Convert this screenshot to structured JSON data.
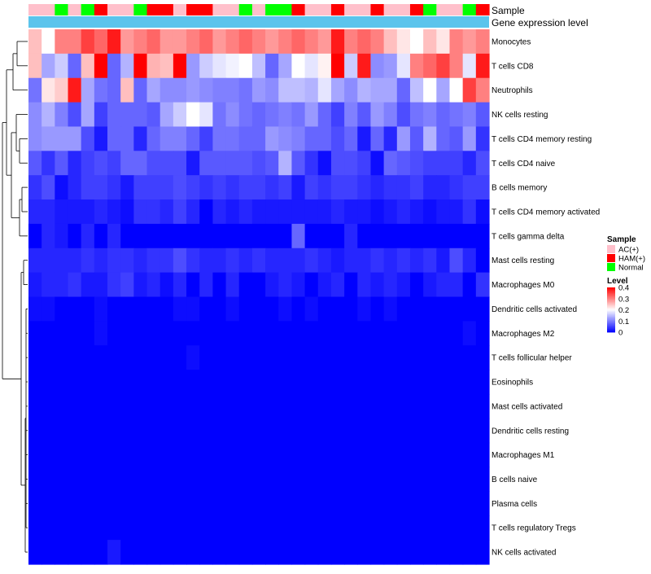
{
  "chart_data": {
    "type": "heatmap",
    "title": "",
    "annotations": [
      {
        "name": "Sample",
        "values": [
          "AC(+)",
          "AC(+)",
          "Normal",
          "AC(+)",
          "Normal",
          "HAM(+)",
          "AC(+)",
          "AC(+)",
          "Normal",
          "HAM(+)",
          "HAM(+)",
          "AC(+)",
          "HAM(+)",
          "HAM(+)",
          "AC(+)",
          "AC(+)",
          "Normal",
          "AC(+)",
          "Normal",
          "Normal",
          "HAM(+)",
          "AC(+)",
          "AC(+)",
          "HAM(+)",
          "AC(+)",
          "AC(+)",
          "HAM(+)",
          "AC(+)",
          "AC(+)",
          "HAM(+)",
          "Normal",
          "AC(+)",
          "AC(+)",
          "Normal",
          "HAM(+)"
        ]
      },
      {
        "name": "Gene expression level",
        "color": "#5bc4ec"
      }
    ],
    "rows": [
      "Monocytes",
      "T cells CD8",
      "Neutrophils",
      "NK cells resting",
      "T cells CD4 memory resting",
      "T cells CD4 naive",
      "B cells memory",
      "T cells CD4 memory activated",
      "T cells gamma delta",
      "Mast cells resting",
      "Macrophages M0",
      "Dendritic cells activated",
      "Macrophages M2",
      "T cells follicular helper",
      "Eosinophils",
      "Mast cells activated",
      "Dendritic cells resting",
      "Macrophages M1",
      "B cells naive",
      "Plasma cells",
      "T cells regulatory  Tregs",
      "NK cells activated"
    ],
    "values": [
      [
        0.25,
        0.2,
        0.3,
        0.3,
        0.35,
        0.32,
        0.38,
        0.28,
        0.3,
        0.32,
        0.28,
        0.28,
        0.3,
        0.32,
        0.28,
        0.3,
        0.32,
        0.3,
        0.28,
        0.3,
        0.32,
        0.3,
        0.28,
        0.38,
        0.3,
        0.32,
        0.3,
        0.25,
        0.22,
        0.2,
        0.25,
        0.22,
        0.3,
        0.28,
        0.3
      ],
      [
        0.25,
        0.13,
        0.16,
        0.08,
        0.25,
        0.4,
        0.08,
        0.14,
        0.4,
        0.26,
        0.25,
        0.4,
        0.12,
        0.16,
        0.18,
        0.19,
        0.2,
        0.15,
        0.08,
        0.13,
        0.2,
        0.18,
        0.21,
        0.4,
        0.16,
        0.38,
        0.11,
        0.12,
        0.18,
        0.3,
        0.32,
        0.35,
        0.3,
        0.18,
        0.38
      ],
      [
        0.09,
        0.22,
        0.24,
        0.38,
        0.13,
        0.09,
        0.08,
        0.25,
        0.08,
        0.13,
        0.11,
        0.11,
        0.12,
        0.11,
        0.1,
        0.1,
        0.09,
        0.12,
        0.11,
        0.15,
        0.15,
        0.14,
        0.18,
        0.13,
        0.11,
        0.14,
        0.13,
        0.13,
        0.08,
        0.15,
        0.2,
        0.13,
        0.2,
        0.35,
        0.3
      ],
      [
        0.11,
        0.14,
        0.1,
        0.06,
        0.13,
        0.05,
        0.08,
        0.08,
        0.08,
        0.07,
        0.13,
        0.16,
        0.2,
        0.18,
        0.09,
        0.11,
        0.09,
        0.08,
        0.09,
        0.1,
        0.09,
        0.12,
        0.08,
        0.05,
        0.1,
        0.07,
        0.12,
        0.1,
        0.06,
        0.09,
        0.1,
        0.08,
        0.09,
        0.1,
        0.07
      ],
      [
        0.11,
        0.12,
        0.12,
        0.12,
        0.06,
        0.02,
        0.08,
        0.08,
        0.03,
        0.08,
        0.1,
        0.1,
        0.08,
        0.05,
        0.09,
        0.09,
        0.08,
        0.08,
        0.12,
        0.11,
        0.1,
        0.08,
        0.08,
        0.06,
        0.08,
        0.02,
        0.08,
        0.03,
        0.12,
        0.07,
        0.14,
        0.08,
        0.07,
        0.12,
        0.04
      ],
      [
        0.07,
        0.04,
        0.07,
        0.03,
        0.05,
        0.06,
        0.05,
        0.08,
        0.08,
        0.06,
        0.06,
        0.06,
        0.02,
        0.07,
        0.07,
        0.07,
        0.07,
        0.06,
        0.07,
        0.14,
        0.07,
        0.04,
        0.01,
        0.06,
        0.06,
        0.05,
        0.01,
        0.08,
        0.07,
        0.06,
        0.05,
        0.05,
        0.05,
        0.03,
        0.06
      ],
      [
        0.04,
        0.06,
        0.01,
        0.03,
        0.05,
        0.05,
        0.04,
        0.02,
        0.05,
        0.05,
        0.05,
        0.06,
        0.05,
        0.04,
        0.05,
        0.04,
        0.05,
        0.05,
        0.04,
        0.05,
        0.02,
        0.05,
        0.04,
        0.05,
        0.05,
        0.04,
        0.03,
        0.04,
        0.04,
        0.05,
        0.03,
        0.03,
        0.04,
        0.05,
        0.05
      ],
      [
        0.03,
        0.03,
        0.02,
        0.02,
        0.02,
        0.03,
        0.02,
        0.01,
        0.04,
        0.04,
        0.03,
        0.05,
        0.03,
        0.0,
        0.03,
        0.02,
        0.03,
        0.02,
        0.02,
        0.02,
        0.02,
        0.02,
        0.02,
        0.03,
        0.02,
        0.02,
        0.01,
        0.02,
        0.03,
        0.02,
        0.01,
        0.02,
        0.02,
        0.04,
        0.01
      ],
      [
        0.0,
        0.03,
        0.02,
        0.0,
        0.03,
        0.0,
        0.03,
        0.0,
        0.0,
        0.0,
        0.0,
        0.0,
        0.0,
        0.0,
        0.0,
        0.0,
        0.0,
        0.0,
        0.0,
        0.0,
        0.08,
        0.0,
        0.0,
        0.0,
        0.03,
        0.0,
        0.0,
        0.0,
        0.0,
        0.0,
        0.0,
        0.0,
        0.0,
        0.0,
        0.0
      ],
      [
        0.03,
        0.03,
        0.03,
        0.03,
        0.04,
        0.03,
        0.04,
        0.04,
        0.03,
        0.04,
        0.04,
        0.06,
        0.04,
        0.03,
        0.03,
        0.04,
        0.03,
        0.04,
        0.03,
        0.03,
        0.03,
        0.04,
        0.03,
        0.02,
        0.03,
        0.03,
        0.04,
        0.03,
        0.04,
        0.03,
        0.04,
        0.02,
        0.06,
        0.03,
        0.0
      ],
      [
        0.02,
        0.03,
        0.03,
        0.04,
        0.02,
        0.02,
        0.04,
        0.05,
        0.02,
        0.03,
        0.01,
        0.03,
        0.0,
        0.03,
        0.0,
        0.03,
        0.0,
        0.0,
        0.02,
        0.03,
        0.02,
        0.0,
        0.02,
        0.03,
        0.0,
        0.03,
        0.02,
        0.03,
        0.02,
        0.0,
        0.02,
        0.03,
        0.03,
        0.0,
        0.04
      ],
      [
        0.01,
        0.01,
        0.0,
        0.0,
        0.0,
        0.01,
        0.0,
        0.0,
        0.0,
        0.0,
        0.0,
        0.01,
        0.01,
        0.0,
        0.0,
        0.01,
        0.0,
        0.0,
        0.0,
        0.01,
        0.0,
        0.01,
        0.0,
        0.0,
        0.0,
        0.01,
        0.0,
        0.01,
        0.0,
        0.0,
        0.0,
        0.0,
        0.0,
        0.0,
        0.0
      ],
      [
        0.0,
        0.0,
        0.0,
        0.0,
        0.0,
        0.01,
        0.0,
        0.0,
        0.0,
        0.0,
        0.0,
        0.0,
        0.0,
        0.0,
        0.0,
        0.0,
        0.0,
        0.0,
        0.0,
        0.0,
        0.0,
        0.0,
        0.0,
        0.0,
        0.0,
        0.0,
        0.0,
        0.0,
        0.0,
        0.0,
        0.0,
        0.0,
        0.0,
        0.01,
        0.0
      ],
      [
        0.0,
        0.0,
        0.0,
        0.0,
        0.0,
        0.0,
        0.0,
        0.0,
        0.0,
        0.0,
        0.0,
        0.0,
        0.01,
        0.0,
        0.0,
        0.0,
        0.0,
        0.0,
        0.0,
        0.0,
        0.0,
        0.0,
        0.0,
        0.0,
        0.0,
        0.0,
        0.0,
        0.0,
        0.0,
        0.0,
        0.0,
        0.0,
        0.0,
        0.0,
        0.0
      ],
      [
        0.0,
        0.0,
        0.0,
        0.0,
        0.0,
        0.0,
        0.0,
        0.0,
        0.0,
        0.0,
        0.0,
        0.0,
        0.0,
        0.0,
        0.0,
        0.0,
        0.0,
        0.0,
        0.0,
        0.0,
        0.0,
        0.0,
        0.0,
        0.0,
        0.0,
        0.0,
        0.0,
        0.0,
        0.0,
        0.0,
        0.0,
        0.0,
        0.0,
        0.0,
        0.0
      ],
      [
        0.0,
        0.0,
        0.0,
        0.0,
        0.0,
        0.0,
        0.0,
        0.0,
        0.0,
        0.0,
        0.0,
        0.0,
        0.0,
        0.0,
        0.0,
        0.0,
        0.0,
        0.0,
        0.0,
        0.0,
        0.0,
        0.0,
        0.0,
        0.0,
        0.0,
        0.0,
        0.0,
        0.0,
        0.0,
        0.0,
        0.0,
        0.0,
        0.0,
        0.0,
        0.0
      ],
      [
        0.0,
        0.0,
        0.0,
        0.0,
        0.0,
        0.0,
        0.0,
        0.0,
        0.0,
        0.0,
        0.0,
        0.0,
        0.0,
        0.0,
        0.0,
        0.0,
        0.0,
        0.0,
        0.0,
        0.0,
        0.0,
        0.0,
        0.0,
        0.0,
        0.0,
        0.0,
        0.0,
        0.0,
        0.0,
        0.0,
        0.0,
        0.0,
        0.0,
        0.0,
        0.0
      ],
      [
        0.0,
        0.0,
        0.0,
        0.0,
        0.0,
        0.0,
        0.0,
        0.0,
        0.0,
        0.0,
        0.0,
        0.0,
        0.0,
        0.0,
        0.0,
        0.0,
        0.0,
        0.0,
        0.0,
        0.0,
        0.0,
        0.0,
        0.0,
        0.0,
        0.0,
        0.0,
        0.0,
        0.0,
        0.0,
        0.0,
        0.0,
        0.0,
        0.0,
        0.0,
        0.0
      ],
      [
        0.0,
        0.0,
        0.0,
        0.0,
        0.0,
        0.0,
        0.0,
        0.0,
        0.0,
        0.0,
        0.0,
        0.0,
        0.0,
        0.0,
        0.0,
        0.0,
        0.0,
        0.0,
        0.0,
        0.0,
        0.0,
        0.0,
        0.0,
        0.0,
        0.0,
        0.0,
        0.0,
        0.0,
        0.0,
        0.0,
        0.0,
        0.0,
        0.0,
        0.0,
        0.0
      ],
      [
        0.0,
        0.0,
        0.0,
        0.0,
        0.0,
        0.0,
        0.0,
        0.0,
        0.0,
        0.0,
        0.0,
        0.0,
        0.0,
        0.0,
        0.0,
        0.0,
        0.0,
        0.0,
        0.0,
        0.0,
        0.0,
        0.0,
        0.0,
        0.0,
        0.0,
        0.0,
        0.0,
        0.0,
        0.0,
        0.0,
        0.0,
        0.0,
        0.0,
        0.0,
        0.0
      ],
      [
        0.0,
        0.0,
        0.0,
        0.0,
        0.0,
        0.0,
        0.0,
        0.0,
        0.0,
        0.0,
        0.0,
        0.0,
        0.0,
        0.0,
        0.0,
        0.0,
        0.0,
        0.0,
        0.0,
        0.0,
        0.0,
        0.0,
        0.0,
        0.0,
        0.0,
        0.0,
        0.0,
        0.0,
        0.0,
        0.0,
        0.0,
        0.0,
        0.0,
        0.0,
        0.0
      ],
      [
        0.0,
        0.0,
        0.0,
        0.0,
        0.0,
        0.0,
        0.02,
        0.0,
        0.0,
        0.0,
        0.0,
        0.0,
        0.0,
        0.0,
        0.0,
        0.0,
        0.0,
        0.0,
        0.0,
        0.0,
        0.0,
        0.0,
        0.0,
        0.0,
        0.0,
        0.0,
        0.0,
        0.0,
        0.0,
        0.0,
        0.0,
        0.0,
        0.0,
        0.0,
        0.0
      ]
    ],
    "color_scale": {
      "low": "#0000ff",
      "mid": "#ffffff",
      "high": "#ff0000",
      "min": 0,
      "mid_value": 0.2,
      "max": 0.4
    },
    "legends": [
      {
        "title": "Sample",
        "items": [
          {
            "label": "AC(+)",
            "color": "#ffc0cb"
          },
          {
            "label": "HAM(+)",
            "color": "#ff0000"
          },
          {
            "label": "Normal",
            "color": "#00ff00"
          }
        ]
      },
      {
        "title": "Level",
        "ticks": [
          "0.4",
          "0.3",
          "0.2",
          "0.1",
          "0"
        ],
        "tick_values": [
          0.4,
          0.3,
          0.2,
          0.1,
          0
        ]
      }
    ],
    "row_dendrogram": true
  }
}
